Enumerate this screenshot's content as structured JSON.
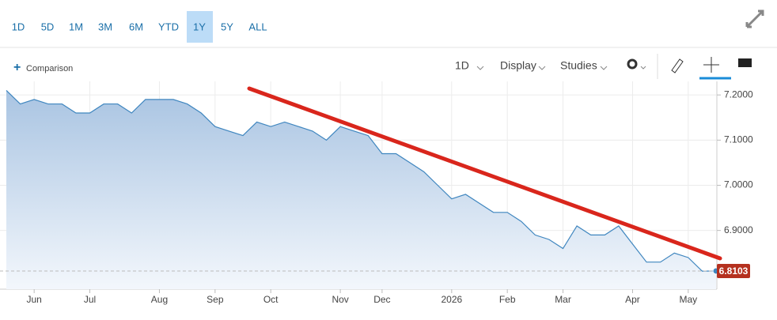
{
  "ui": {
    "ranges": [
      "1D",
      "5D",
      "1M",
      "3M",
      "6M",
      "YTD",
      "1Y",
      "5Y",
      "ALL"
    ],
    "comparison": "Comparison",
    "interval": "1D",
    "display": "Display",
    "studies": "Studies"
  },
  "chart_data": {
    "type": "area",
    "color": "#3f86bf",
    "categories": [
      null,
      null,
      "Jun",
      null,
      null,
      null,
      "Jul",
      null,
      null,
      null,
      null,
      "Aug",
      null,
      null,
      null,
      "Sep",
      null,
      null,
      null,
      "Oct",
      null,
      null,
      null,
      null,
      "Nov",
      null,
      null,
      "Dec",
      null,
      null,
      null,
      null,
      "2026",
      null,
      null,
      null,
      "Feb",
      null,
      null,
      null,
      "Mar",
      null,
      null,
      null,
      null,
      "Apr",
      null,
      null,
      null,
      "May",
      null,
      null
    ],
    "values": [
      7.21,
      7.18,
      7.19,
      7.18,
      7.18,
      7.16,
      7.16,
      7.18,
      7.18,
      7.16,
      7.19,
      7.19,
      7.19,
      7.18,
      7.16,
      7.13,
      7.12,
      7.11,
      7.14,
      7.13,
      7.14,
      7.13,
      7.12,
      7.1,
      7.13,
      7.12,
      7.11,
      7.07,
      7.07,
      7.05,
      7.03,
      7.0,
      6.97,
      6.98,
      6.96,
      6.94,
      6.94,
      6.92,
      6.89,
      6.88,
      6.86,
      6.91,
      6.89,
      6.89,
      6.91,
      6.87,
      6.83,
      6.83,
      6.85,
      6.84,
      6.81,
      6.8103
    ],
    "ylim": [
      6.77,
      7.23
    ],
    "yticks": [
      {
        "value": 6.9,
        "label": "6.9000"
      },
      {
        "value": 7.0,
        "label": "7.0000"
      },
      {
        "value": 7.1,
        "label": "7.1000"
      },
      {
        "value": 7.2,
        "label": "7.2000"
      }
    ],
    "grid": true
  }
}
